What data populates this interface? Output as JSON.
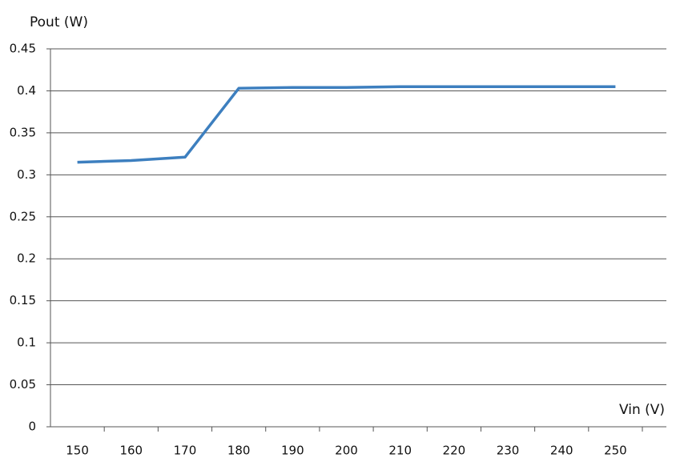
{
  "chart_data": {
    "type": "line",
    "y_label": "Pout (W)",
    "x_label": "Vin (V)",
    "categories": [
      "150",
      "160",
      "170",
      "180",
      "190",
      "200",
      "210",
      "220",
      "230",
      "240",
      "250"
    ],
    "series": [
      {
        "name": "Pout",
        "color": "#3d7fbf",
        "values": [
          0.315,
          0.317,
          0.321,
          0.403,
          0.404,
          0.404,
          0.405,
          0.405,
          0.405,
          0.405,
          0.405
        ]
      }
    ],
    "ylim": [
      0,
      0.45
    ],
    "yticks": [
      0,
      0.05,
      0.1,
      0.15,
      0.2,
      0.25,
      0.3,
      0.35,
      0.4,
      0.45
    ],
    "grid": true
  }
}
